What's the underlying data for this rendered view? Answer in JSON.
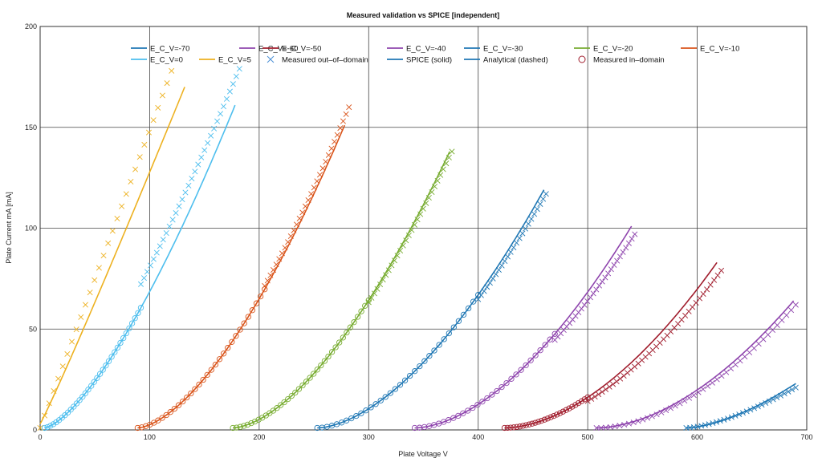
{
  "chart_data": {
    "type": "line",
    "title": "Measured validation vs SPICE [independent]",
    "xlabel": "Plate Voltage V",
    "ylabel": "Plate Current mA [mA]",
    "xlim": [
      0,
      700
    ],
    "ylim": [
      0,
      200
    ],
    "xticks": [
      "0",
      "100",
      "200",
      "300",
      "400",
      "500",
      "600",
      "700"
    ],
    "yticks": [
      "0",
      "50",
      "100",
      "150",
      "200"
    ],
    "grid": true,
    "legend_position": "top",
    "legend": [
      {
        "label": "E_C_V=-70",
        "color": "#1f77b4",
        "kind": "line"
      },
      {
        "label": "E_C_V=-60",
        "color": "#8e44ad",
        "kind": "line"
      },
      {
        "label": "E_C_V=-50",
        "color": "#a01c2c",
        "kind": "line"
      },
      {
        "label": "E_C_V=-40",
        "color": "#8e44ad",
        "kind": "line"
      },
      {
        "label": "E_C_V=-30",
        "color": "#1f77b4",
        "kind": "line"
      },
      {
        "label": "E_C_V=-20",
        "color": "#77ac30",
        "kind": "line"
      },
      {
        "label": "E_C_V=-10",
        "color": "#d95319",
        "kind": "line"
      },
      {
        "label": "E_C_V=0",
        "color": "#4dbeee",
        "kind": "line"
      },
      {
        "label": "E_C_V=5",
        "color": "#edb120",
        "kind": "line"
      },
      {
        "label": "Measured out–of–domain",
        "color": "#4a8fd6",
        "kind": "cross"
      },
      {
        "label": "SPICE (solid)",
        "color": "#1f77b4",
        "kind": "line"
      },
      {
        "label": "Analytical (dashed)",
        "color": "#1f77b4",
        "kind": "line"
      },
      {
        "label": "Measured in–domain",
        "color": "#a01c2c",
        "kind": "circle"
      }
    ],
    "series": [
      {
        "grid_voltage": 5,
        "color": "#edb120",
        "spice": {
          "v0": 0,
          "v1": 132,
          "i1": 167,
          "p": 1.05
        },
        "measured_in": {
          "from": 0,
          "to": 0,
          "n": 0
        },
        "measured_out": {
          "from": 0,
          "to": 120,
          "n": 30,
          "i1": 177,
          "p": 1.0
        }
      },
      {
        "grid_voltage": 0,
        "color": "#4dbeee",
        "spice": {
          "v0": 4,
          "v1": 178,
          "i1": 160,
          "p": 1.45
        },
        "measured_in": {
          "from": 4,
          "to": 92,
          "n": 34
        },
        "measured_out": {
          "from": 92,
          "to": 182,
          "n": 32,
          "i1": 178,
          "p": 1.3
        }
      },
      {
        "grid_voltage": -10,
        "color": "#d95319",
        "spice": {
          "v0": 89,
          "v1": 278,
          "i1": 150,
          "p": 1.6
        },
        "measured_in": {
          "from": 89,
          "to": 205,
          "n": 32
        },
        "measured_out": {
          "from": 205,
          "to": 282,
          "n": 30,
          "i1": 159,
          "p": 1.6
        }
      },
      {
        "grid_voltage": -20,
        "color": "#77ac30",
        "spice": {
          "v0": 176,
          "v1": 374,
          "i1": 137,
          "p": 1.65
        },
        "measured_in": {
          "from": 176,
          "to": 300,
          "n": 38
        },
        "measured_out": {
          "from": 300,
          "to": 376,
          "n": 30,
          "i1": 137,
          "p": 1.65
        }
      },
      {
        "grid_voltage": -30,
        "color": "#1f77b4",
        "spice": {
          "v0": 253,
          "v1": 460,
          "i1": 118,
          "p": 1.7
        },
        "measured_in": {
          "from": 253,
          "to": 400,
          "n": 34
        },
        "measured_out": {
          "from": 400,
          "to": 462,
          "n": 24,
          "i1": 116,
          "p": 1.7
        }
      },
      {
        "grid_voltage": -40,
        "color": "#8e44ad",
        "spice": {
          "v0": 342,
          "v1": 540,
          "i1": 100,
          "p": 1.75
        },
        "measured_in": {
          "from": 342,
          "to": 470,
          "n": 30
        },
        "measured_out": {
          "from": 470,
          "to": 543,
          "n": 28,
          "i1": 96,
          "p": 1.75
        }
      },
      {
        "grid_voltage": -50,
        "color": "#a01c2c",
        "spice": {
          "v0": 424,
          "v1": 618,
          "i1": 82,
          "p": 1.8
        },
        "measured_in": {
          "from": 424,
          "to": 500,
          "n": 28
        },
        "measured_out": {
          "from": 500,
          "to": 622,
          "n": 38,
          "i1": 78,
          "p": 1.85
        }
      },
      {
        "grid_voltage": -60,
        "color": "#8e44ad",
        "spice": {
          "v0": 508,
          "v1": 688,
          "i1": 63,
          "p": 1.8
        },
        "measured_in": {
          "from": 0,
          "to": 0,
          "n": 0
        },
        "measured_out": {
          "from": 508,
          "to": 690,
          "n": 44,
          "i1": 61,
          "p": 1.85
        }
      },
      {
        "grid_voltage": -70,
        "color": "#1f77b4",
        "spice": {
          "v0": 590,
          "v1": 690,
          "i1": 22,
          "p": 1.6
        },
        "measured_in": {
          "from": 0,
          "to": 0,
          "n": 0
        },
        "measured_out": {
          "from": 590,
          "to": 690,
          "n": 30,
          "i1": 20,
          "p": 1.5
        }
      }
    ]
  }
}
